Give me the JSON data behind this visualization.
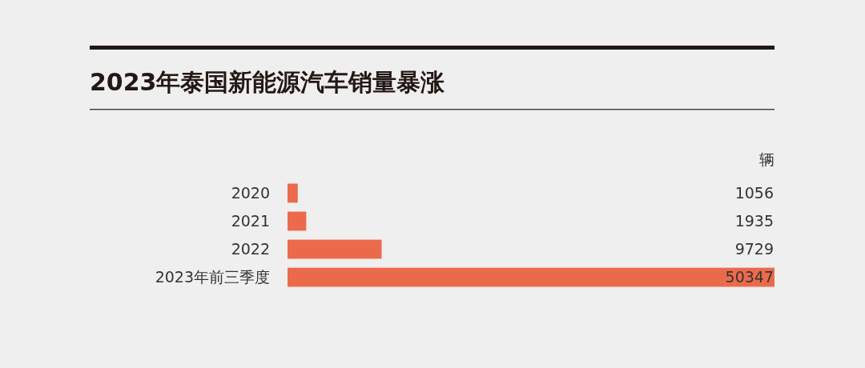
{
  "chart_data": {
    "type": "bar",
    "orientation": "horizontal",
    "title": "2023年泰国新能源汽车销量暴涨",
    "categories": [
      "2020",
      "2021",
      "2022",
      "2023年前三季度"
    ],
    "values": [
      1056,
      1935,
      9729,
      50347
    ],
    "color": "#ec6a4c",
    "data_labels": true,
    "annotations": [
      "辆"
    ]
  }
}
